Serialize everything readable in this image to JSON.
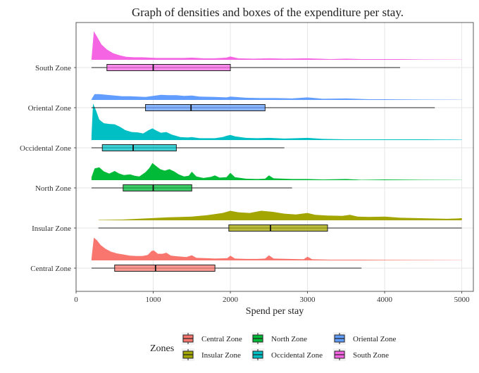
{
  "chart_data": {
    "type": "ridgeline-boxplot",
    "title": "Graph of densities and boxes of the expenditure per stay.",
    "xlabel": "Spend per stay",
    "ylabel": "",
    "xlim": [
      0,
      5150
    ],
    "x_ticks": [
      0,
      1000,
      2000,
      3000,
      4000,
      5000
    ],
    "grid": true,
    "legend": {
      "title": "Zones",
      "placement": "bottom",
      "entries": [
        "Central Zone",
        "Insular Zone",
        "North Zone",
        "Occidental Zone",
        "Oriental Zone",
        "South Zone"
      ]
    },
    "series": [
      {
        "name": "Central Zone",
        "color": "#F8766D",
        "box": {
          "whisker_low": 200,
          "q1": 500,
          "median": 1030,
          "q3": 1800,
          "whisker_high": 3700
        },
        "density": [
          [
            200,
            0.05
          ],
          [
            230,
            0.62
          ],
          [
            270,
            0.55
          ],
          [
            320,
            0.42
          ],
          [
            380,
            0.32
          ],
          [
            450,
            0.24
          ],
          [
            530,
            0.19
          ],
          [
            620,
            0.16
          ],
          [
            700,
            0.13
          ],
          [
            780,
            0.12
          ],
          [
            860,
            0.12
          ],
          [
            930,
            0.15
          ],
          [
            980,
            0.26
          ],
          [
            1010,
            0.27
          ],
          [
            1060,
            0.18
          ],
          [
            1120,
            0.18
          ],
          [
            1170,
            0.21
          ],
          [
            1230,
            0.13
          ],
          [
            1320,
            0.11
          ],
          [
            1430,
            0.09
          ],
          [
            1500,
            0.14
          ],
          [
            1560,
            0.07
          ],
          [
            1700,
            0.06
          ],
          [
            1800,
            0.05
          ],
          [
            1960,
            0.06
          ],
          [
            2000,
            0.13
          ],
          [
            2060,
            0.05
          ],
          [
            2200,
            0.04
          ],
          [
            2350,
            0.04
          ],
          [
            2450,
            0.05
          ],
          [
            2500,
            0.14
          ],
          [
            2560,
            0.05
          ],
          [
            2750,
            0.04
          ],
          [
            2950,
            0.03
          ],
          [
            3000,
            0.1
          ],
          [
            3060,
            0.03
          ],
          [
            3300,
            0.02
          ],
          [
            3500,
            0.02
          ],
          [
            3700,
            0.02
          ],
          [
            4000,
            0.015
          ],
          [
            4500,
            0.01
          ],
          [
            5000,
            0.005
          ]
        ]
      },
      {
        "name": "Insular Zone",
        "color": "#A3A500",
        "box": {
          "whisker_low": 290,
          "q1": 1980,
          "median": 2520,
          "q3": 3260,
          "whisker_high": 5000
        },
        "density": [
          [
            290,
            0.01
          ],
          [
            600,
            0.02
          ],
          [
            900,
            0.05
          ],
          [
            1200,
            0.08
          ],
          [
            1500,
            0.1
          ],
          [
            1700,
            0.14
          ],
          [
            1900,
            0.2
          ],
          [
            2000,
            0.26
          ],
          [
            2100,
            0.22
          ],
          [
            2250,
            0.2
          ],
          [
            2400,
            0.26
          ],
          [
            2550,
            0.23
          ],
          [
            2700,
            0.18
          ],
          [
            2850,
            0.16
          ],
          [
            3000,
            0.2
          ],
          [
            3100,
            0.15
          ],
          [
            3250,
            0.13
          ],
          [
            3450,
            0.12
          ],
          [
            3550,
            0.15
          ],
          [
            3650,
            0.1
          ],
          [
            3800,
            0.09
          ],
          [
            4000,
            0.1
          ],
          [
            4200,
            0.07
          ],
          [
            4400,
            0.06
          ],
          [
            4600,
            0.05
          ],
          [
            4800,
            0.04
          ],
          [
            4950,
            0.05
          ],
          [
            5000,
            0.06
          ]
        ]
      },
      {
        "name": "North Zone",
        "color": "#00BA38",
        "box": {
          "whisker_low": 200,
          "q1": 610,
          "median": 1000,
          "q3": 1500,
          "whisker_high": 2800
        },
        "density": [
          [
            200,
            0.08
          ],
          [
            240,
            0.32
          ],
          [
            300,
            0.35
          ],
          [
            360,
            0.24
          ],
          [
            430,
            0.18
          ],
          [
            500,
            0.25
          ],
          [
            560,
            0.18
          ],
          [
            620,
            0.14
          ],
          [
            700,
            0.16
          ],
          [
            760,
            0.12
          ],
          [
            820,
            0.1
          ],
          [
            900,
            0.22
          ],
          [
            950,
            0.33
          ],
          [
            990,
            0.47
          ],
          [
            1030,
            0.4
          ],
          [
            1090,
            0.3
          ],
          [
            1150,
            0.26
          ],
          [
            1210,
            0.3
          ],
          [
            1270,
            0.24
          ],
          [
            1330,
            0.16
          ],
          [
            1400,
            0.1
          ],
          [
            1460,
            0.12
          ],
          [
            1500,
            0.23
          ],
          [
            1560,
            0.1
          ],
          [
            1650,
            0.06
          ],
          [
            1750,
            0.09
          ],
          [
            1800,
            0.13
          ],
          [
            1860,
            0.07
          ],
          [
            1950,
            0.08
          ],
          [
            2000,
            0.2
          ],
          [
            2060,
            0.08
          ],
          [
            2200,
            0.04
          ],
          [
            2350,
            0.03
          ],
          [
            2450,
            0.04
          ],
          [
            2500,
            0.13
          ],
          [
            2560,
            0.05
          ],
          [
            2800,
            0.03
          ],
          [
            3000,
            0.03
          ],
          [
            3200,
            0.02
          ],
          [
            3500,
            0.03
          ],
          [
            3700,
            0.01
          ],
          [
            4000,
            0.02
          ],
          [
            4500,
            0.01
          ],
          [
            5000,
            0.005
          ]
        ]
      },
      {
        "name": "Occidental Zone",
        "color": "#00BFC4",
        "box": {
          "whisker_low": 200,
          "q1": 340,
          "median": 740,
          "q3": 1300,
          "whisker_high": 2700
        },
        "density": [
          [
            200,
            0.12
          ],
          [
            220,
            1.0
          ],
          [
            260,
            0.8
          ],
          [
            300,
            0.56
          ],
          [
            360,
            0.46
          ],
          [
            430,
            0.44
          ],
          [
            500,
            0.43
          ],
          [
            570,
            0.36
          ],
          [
            640,
            0.27
          ],
          [
            720,
            0.22
          ],
          [
            800,
            0.21
          ],
          [
            870,
            0.18
          ],
          [
            940,
            0.27
          ],
          [
            990,
            0.32
          ],
          [
            1040,
            0.26
          ],
          [
            1100,
            0.2
          ],
          [
            1170,
            0.22
          ],
          [
            1240,
            0.15
          ],
          [
            1350,
            0.08
          ],
          [
            1450,
            0.07
          ],
          [
            1500,
            0.08
          ],
          [
            1600,
            0.05
          ],
          [
            1800,
            0.05
          ],
          [
            1900,
            0.08
          ],
          [
            1960,
            0.12
          ],
          [
            2000,
            0.14
          ],
          [
            2060,
            0.1
          ],
          [
            2200,
            0.06
          ],
          [
            2350,
            0.05
          ],
          [
            2500,
            0.06
          ],
          [
            2700,
            0.04
          ],
          [
            3000,
            0.06
          ],
          [
            3200,
            0.03
          ],
          [
            3500,
            0.02
          ],
          [
            4000,
            0.02
          ],
          [
            4500,
            0.02
          ],
          [
            5000,
            0.01
          ]
        ]
      },
      {
        "name": "Oriental Zone",
        "color": "#619CFF",
        "box": {
          "whisker_low": 200,
          "q1": 900,
          "median": 1490,
          "q3": 2450,
          "whisker_high": 4650
        },
        "density": [
          [
            200,
            0.02
          ],
          [
            240,
            0.16
          ],
          [
            300,
            0.16
          ],
          [
            400,
            0.14
          ],
          [
            500,
            0.12
          ],
          [
            600,
            0.1
          ],
          [
            700,
            0.1
          ],
          [
            800,
            0.09
          ],
          [
            900,
            0.08
          ],
          [
            1000,
            0.11
          ],
          [
            1100,
            0.14
          ],
          [
            1200,
            0.13
          ],
          [
            1300,
            0.13
          ],
          [
            1400,
            0.11
          ],
          [
            1500,
            0.12
          ],
          [
            1600,
            0.09
          ],
          [
            1800,
            0.08
          ],
          [
            1950,
            0.07
          ],
          [
            2000,
            0.09
          ],
          [
            2200,
            0.06
          ],
          [
            2400,
            0.05
          ],
          [
            2600,
            0.05
          ],
          [
            2800,
            0.04
          ],
          [
            3000,
            0.07
          ],
          [
            3200,
            0.03
          ],
          [
            3500,
            0.04
          ],
          [
            3800,
            0.02
          ],
          [
            4000,
            0.02
          ],
          [
            4500,
            0.01
          ],
          [
            5000,
            0.005
          ]
        ]
      },
      {
        "name": "South Zone",
        "color": "#F564E3",
        "box": {
          "whisker_low": 200,
          "q1": 400,
          "median": 1000,
          "q3": 2000,
          "whisker_high": 4200
        },
        "density": [
          [
            200,
            0.02
          ],
          [
            230,
            0.78
          ],
          [
            280,
            0.6
          ],
          [
            330,
            0.42
          ],
          [
            400,
            0.28
          ],
          [
            480,
            0.18
          ],
          [
            570,
            0.12
          ],
          [
            650,
            0.08
          ],
          [
            750,
            0.07
          ],
          [
            850,
            0.07
          ],
          [
            950,
            0.06
          ],
          [
            1050,
            0.05
          ],
          [
            1200,
            0.05
          ],
          [
            1400,
            0.05
          ],
          [
            1500,
            0.06
          ],
          [
            1650,
            0.04
          ],
          [
            1800,
            0.04
          ],
          [
            1950,
            0.06
          ],
          [
            2000,
            0.09
          ],
          [
            2100,
            0.04
          ],
          [
            2300,
            0.03
          ],
          [
            2500,
            0.04
          ],
          [
            2700,
            0.03
          ],
          [
            3000,
            0.04
          ],
          [
            3300,
            0.02
          ],
          [
            3500,
            0.03
          ],
          [
            3700,
            0.02
          ],
          [
            4000,
            0.02
          ],
          [
            4200,
            0.02
          ],
          [
            4500,
            0.01
          ],
          [
            5000,
            0.005
          ]
        ]
      }
    ]
  }
}
